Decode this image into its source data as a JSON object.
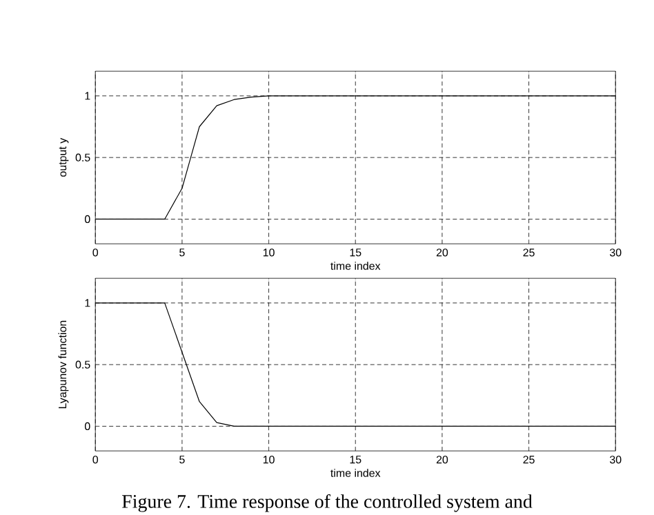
{
  "chart_data": [
    {
      "type": "line",
      "x": [
        0,
        4,
        5,
        5.5,
        6,
        7,
        8,
        9,
        10,
        30
      ],
      "series": [
        {
          "color": "#000000",
          "values": [
            0,
            0,
            0.25,
            0.5,
            0.75,
            0.92,
            0.97,
            0.99,
            1,
            1
          ]
        }
      ],
      "xlabel": "time index",
      "ylabel": "output y",
      "xlim": [
        0,
        30
      ],
      "ylim": [
        -0.2,
        1.2
      ],
      "xticks": [
        0,
        5,
        10,
        15,
        20,
        25,
        30
      ],
      "yticks": [
        0,
        0.5,
        1
      ],
      "grid": true
    },
    {
      "type": "line",
      "x": [
        0,
        4,
        5,
        5.5,
        6,
        7,
        8,
        30
      ],
      "series": [
        {
          "color": "#000000",
          "values": [
            1,
            1,
            0.6,
            0.4,
            0.2,
            0.03,
            0,
            0
          ]
        }
      ],
      "xlabel": "time index",
      "ylabel": "Lyapunov function",
      "xlim": [
        0,
        30
      ],
      "ylim": [
        -0.2,
        1.2
      ],
      "xticks": [
        0,
        5,
        10,
        15,
        20,
        25,
        30
      ],
      "yticks": [
        0,
        0.5,
        1
      ],
      "grid": true,
      "annotations": [
        "Figure 7. Time response of the controlled system and"
      ]
    }
  ]
}
